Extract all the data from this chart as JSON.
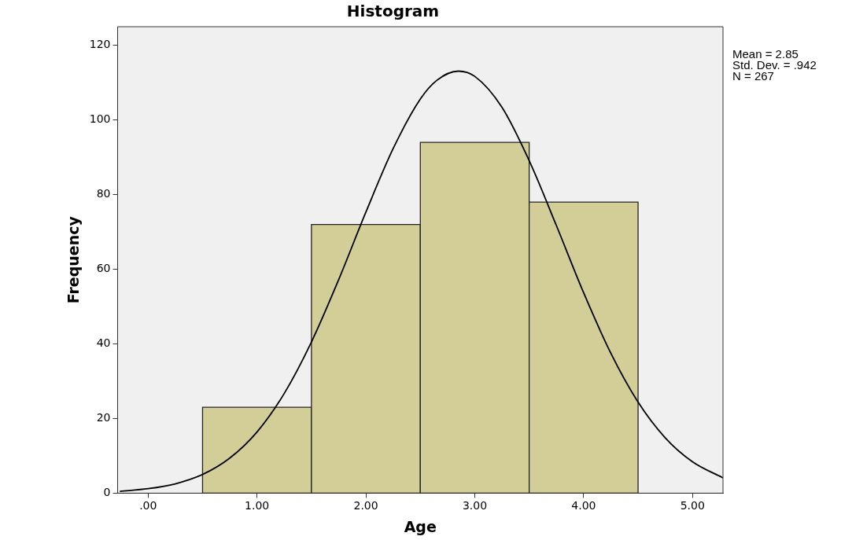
{
  "chart_data": {
    "type": "histogram",
    "title": "Histogram",
    "xlabel": "Age",
    "ylabel": "Frequency",
    "bins": [
      0.5,
      1.5,
      2.5,
      3.5,
      4.5
    ],
    "values": [
      23,
      72,
      94,
      78
    ],
    "color": "#d3ce97",
    "series": [
      {
        "type": "line",
        "color": "#000000",
        "x": [
          -0.26,
          0,
          0.25,
          0.5,
          0.75,
          1,
          1.25,
          1.5,
          1.75,
          2,
          2.25,
          2.5,
          2.65,
          2.85,
          3,
          3.25,
          3.5,
          3.75,
          4,
          4.25,
          4.5,
          4.75,
          5,
          5.28
        ],
        "values": [
          0.5,
          1.2,
          2.5,
          5,
          9.4,
          16.4,
          26.7,
          40.5,
          57.2,
          75.3,
          92.3,
          105.6,
          110.6,
          113.1,
          111.7,
          103.4,
          89.1,
          71.7,
          53.7,
          37.5,
          24.4,
          14.8,
          8.4,
          4.1
        ]
      }
    ],
    "xlim": [
      -0.28,
      5.28
    ],
    "xticks": [
      {
        "value": 0,
        "label": ".00"
      },
      {
        "value": 1,
        "label": "1.00"
      },
      {
        "value": 2,
        "label": "2.00"
      },
      {
        "value": 3,
        "label": "3.00"
      },
      {
        "value": 4,
        "label": "4.00"
      },
      {
        "value": 5,
        "label": "5.00"
      }
    ],
    "ylim": [
      0,
      125
    ],
    "yticks": [
      0,
      20,
      40,
      60,
      80,
      100,
      120
    ],
    "grid": false,
    "legend": false,
    "marker": "none",
    "annotations": [
      "Mean = 2.85",
      "Std. Dev. = .942",
      "N = 267"
    ]
  }
}
